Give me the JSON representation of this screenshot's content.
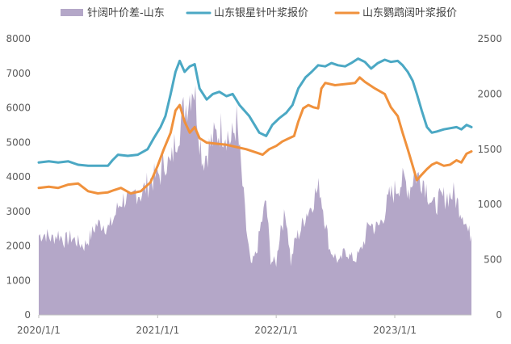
{
  "chart_data": {
    "type": "area+line",
    "title": "",
    "legend": {
      "placement": "top",
      "entries": [
        {
          "label": "针阔叶价差-山东",
          "color": "#b4a7c8",
          "kind": "area",
          "axis": "left"
        },
        {
          "label": "山东银星针叶浆报价",
          "color": "#4ba8c4",
          "kind": "line",
          "axis": "right"
        },
        {
          "label": "山东鹦鹉阔叶浆报价",
          "color": "#f0913c",
          "kind": "line",
          "axis": "right"
        }
      ]
    },
    "x_axis": {
      "type": "date",
      "range": [
        "2020-01-01",
        "2023-08-25"
      ],
      "tick_labels": [
        "2020/1/1",
        "2021/1/1",
        "2022/1/1",
        "2023/1/1"
      ],
      "tick_dates": [
        "2020-01-01",
        "2021-01-01",
        "2022-01-01",
        "2023-01-01"
      ]
    },
    "y_left": {
      "range": [
        0,
        8000
      ],
      "ticks": [
        "0",
        "1000",
        "2000",
        "3000",
        "4000",
        "5000",
        "6000",
        "7000",
        "8000"
      ]
    },
    "y_right": {
      "range": [
        0,
        2500
      ],
      "ticks": [
        "0",
        "500",
        "1000",
        "1500",
        "2000",
        "2500"
      ]
    },
    "grid": false,
    "series": [
      {
        "name": "针阔叶价差-山东",
        "axis": "left",
        "points": [
          [
            "2020-01-01",
            2300
          ],
          [
            "2020-01-20",
            2350
          ],
          [
            "2020-02-10",
            2200
          ],
          [
            "2020-03-01",
            2350
          ],
          [
            "2020-03-20",
            2150
          ],
          [
            "2020-04-10",
            2250
          ],
          [
            "2020-05-01",
            2100
          ],
          [
            "2020-05-20",
            2000
          ],
          [
            "2020-06-10",
            2300
          ],
          [
            "2020-06-25",
            2600
          ],
          [
            "2020-07-15",
            2650
          ],
          [
            "2020-08-05",
            2500
          ],
          [
            "2020-08-25",
            2950
          ],
          [
            "2020-09-10",
            3300
          ],
          [
            "2020-09-25",
            3400
          ],
          [
            "2020-10-10",
            3200
          ],
          [
            "2020-10-25",
            3600
          ],
          [
            "2020-11-10",
            3500
          ],
          [
            "2020-11-25",
            3700
          ],
          [
            "2020-12-10",
            3900
          ],
          [
            "2020-12-25",
            4000
          ],
          [
            "2021-01-10",
            4100
          ],
          [
            "2021-01-25",
            4500
          ],
          [
            "2021-02-10",
            4300
          ],
          [
            "2021-02-25",
            5100
          ],
          [
            "2021-03-10",
            5500
          ],
          [
            "2021-03-25",
            6000
          ],
          [
            "2021-04-10",
            6400
          ],
          [
            "2021-04-20",
            6750
          ],
          [
            "2021-05-01",
            6000
          ],
          [
            "2021-05-10",
            5200
          ],
          [
            "2021-05-20",
            4500
          ],
          [
            "2021-06-01",
            4700
          ],
          [
            "2021-06-15",
            5000
          ],
          [
            "2021-07-01",
            5200
          ],
          [
            "2021-07-15",
            5400
          ],
          [
            "2021-08-01",
            5300
          ],
          [
            "2021-08-15",
            5000
          ],
          [
            "2021-09-01",
            5600
          ],
          [
            "2021-09-15",
            4200
          ],
          [
            "2021-10-01",
            2500
          ],
          [
            "2021-10-15",
            1400
          ],
          [
            "2021-11-01",
            1800
          ],
          [
            "2021-11-15",
            2600
          ],
          [
            "2021-12-01",
            3300
          ],
          [
            "2021-12-15",
            1600
          ],
          [
            "2022-01-01",
            1500
          ],
          [
            "2022-01-15",
            2600
          ],
          [
            "2022-02-01",
            2900
          ],
          [
            "2022-02-15",
            1500
          ],
          [
            "2022-03-01",
            2200
          ],
          [
            "2022-03-15",
            2400
          ],
          [
            "2022-04-01",
            2900
          ],
          [
            "2022-04-15",
            3100
          ],
          [
            "2022-05-01",
            3500
          ],
          [
            "2022-05-15",
            3700
          ],
          [
            "2022-06-01",
            2700
          ],
          [
            "2022-06-15",
            1900
          ],
          [
            "2022-07-01",
            1700
          ],
          [
            "2022-07-15",
            1500
          ],
          [
            "2022-08-01",
            1900
          ],
          [
            "2022-08-15",
            1700
          ],
          [
            "2022-09-01",
            1600
          ],
          [
            "2022-09-15",
            1800
          ],
          [
            "2022-10-01",
            2200
          ],
          [
            "2022-10-15",
            2700
          ],
          [
            "2022-11-01",
            2500
          ],
          [
            "2022-11-15",
            2600
          ],
          [
            "2022-12-01",
            3000
          ],
          [
            "2022-12-15",
            3400
          ],
          [
            "2023-01-01",
            3600
          ],
          [
            "2023-01-15",
            3800
          ],
          [
            "2023-02-01",
            3900
          ],
          [
            "2023-02-15",
            3600
          ],
          [
            "2023-03-01",
            4100
          ],
          [
            "2023-03-15",
            4000
          ],
          [
            "2023-04-01",
            3900
          ],
          [
            "2023-04-15",
            3500
          ],
          [
            "2023-05-01",
            3100
          ],
          [
            "2023-05-15",
            3300
          ],
          [
            "2023-06-01",
            3400
          ],
          [
            "2023-06-15",
            3450
          ],
          [
            "2023-07-01",
            3500
          ],
          [
            "2023-07-15",
            3200
          ],
          [
            "2023-08-01",
            2900
          ],
          [
            "2023-08-15",
            2400
          ],
          [
            "2023-08-25",
            2300
          ]
        ]
      },
      {
        "name": "山东银星针叶浆报价",
        "axis": "right",
        "color": "#4ba8c4",
        "points": [
          [
            "2020-01-01",
            1380
          ],
          [
            "2020-02-01",
            1390
          ],
          [
            "2020-03-01",
            1380
          ],
          [
            "2020-04-01",
            1390
          ],
          [
            "2020-05-01",
            1360
          ],
          [
            "2020-06-01",
            1350
          ],
          [
            "2020-07-01",
            1350
          ],
          [
            "2020-08-01",
            1350
          ],
          [
            "2020-08-15",
            1400
          ],
          [
            "2020-09-01",
            1450
          ],
          [
            "2020-10-01",
            1440
          ],
          [
            "2020-11-01",
            1450
          ],
          [
            "2020-12-01",
            1500
          ],
          [
            "2020-12-20",
            1600
          ],
          [
            "2021-01-10",
            1700
          ],
          [
            "2021-01-25",
            1800
          ],
          [
            "2021-02-10",
            2000
          ],
          [
            "2021-02-25",
            2200
          ],
          [
            "2021-03-10",
            2300
          ],
          [
            "2021-03-25",
            2200
          ],
          [
            "2021-04-10",
            2250
          ],
          [
            "2021-04-25",
            2270
          ],
          [
            "2021-05-10",
            2050
          ],
          [
            "2021-06-01",
            1950
          ],
          [
            "2021-06-20",
            2000
          ],
          [
            "2021-07-10",
            2020
          ],
          [
            "2021-08-01",
            1980
          ],
          [
            "2021-08-20",
            2000
          ],
          [
            "2021-09-10",
            1900
          ],
          [
            "2021-10-10",
            1800
          ],
          [
            "2021-11-10",
            1650
          ],
          [
            "2021-12-01",
            1620
          ],
          [
            "2021-12-20",
            1720
          ],
          [
            "2022-01-10",
            1780
          ],
          [
            "2022-02-01",
            1830
          ],
          [
            "2022-02-20",
            1900
          ],
          [
            "2022-03-10",
            2050
          ],
          [
            "2022-04-01",
            2150
          ],
          [
            "2022-04-20",
            2200
          ],
          [
            "2022-05-10",
            2260
          ],
          [
            "2022-06-01",
            2250
          ],
          [
            "2022-06-20",
            2280
          ],
          [
            "2022-07-10",
            2260
          ],
          [
            "2022-08-01",
            2250
          ],
          [
            "2022-08-20",
            2280
          ],
          [
            "2022-09-10",
            2320
          ],
          [
            "2022-10-01",
            2290
          ],
          [
            "2022-10-20",
            2230
          ],
          [
            "2022-11-10",
            2280
          ],
          [
            "2022-12-01",
            2310
          ],
          [
            "2022-12-20",
            2290
          ],
          [
            "2023-01-10",
            2300
          ],
          [
            "2023-01-25",
            2260
          ],
          [
            "2023-02-10",
            2200
          ],
          [
            "2023-02-25",
            2120
          ],
          [
            "2023-03-10",
            2000
          ],
          [
            "2023-03-25",
            1850
          ],
          [
            "2023-04-10",
            1700
          ],
          [
            "2023-04-25",
            1650
          ],
          [
            "2023-05-10",
            1660
          ],
          [
            "2023-06-01",
            1680
          ],
          [
            "2023-06-20",
            1690
          ],
          [
            "2023-07-10",
            1700
          ],
          [
            "2023-07-25",
            1680
          ],
          [
            "2023-08-10",
            1720
          ],
          [
            "2023-08-25",
            1700
          ]
        ]
      },
      {
        "name": "山东鹦鹉阔叶浆报价",
        "axis": "right",
        "color": "#f0913c",
        "points": [
          [
            "2020-01-01",
            1150
          ],
          [
            "2020-02-01",
            1160
          ],
          [
            "2020-03-01",
            1150
          ],
          [
            "2020-04-01",
            1180
          ],
          [
            "2020-05-01",
            1190
          ],
          [
            "2020-06-01",
            1120
          ],
          [
            "2020-07-01",
            1100
          ],
          [
            "2020-08-01",
            1110
          ],
          [
            "2020-08-20",
            1130
          ],
          [
            "2020-09-10",
            1150
          ],
          [
            "2020-10-10",
            1100
          ],
          [
            "2020-11-10",
            1120
          ],
          [
            "2020-12-10",
            1200
          ],
          [
            "2021-01-01",
            1350
          ],
          [
            "2021-01-20",
            1500
          ],
          [
            "2021-02-10",
            1650
          ],
          [
            "2021-02-25",
            1850
          ],
          [
            "2021-03-10",
            1900
          ],
          [
            "2021-03-25",
            1750
          ],
          [
            "2021-04-10",
            1650
          ],
          [
            "2021-04-25",
            1700
          ],
          [
            "2021-05-10",
            1600
          ],
          [
            "2021-06-01",
            1560
          ],
          [
            "2021-07-01",
            1550
          ],
          [
            "2021-08-01",
            1540
          ],
          [
            "2021-09-01",
            1520
          ],
          [
            "2021-10-01",
            1500
          ],
          [
            "2021-11-01",
            1470
          ],
          [
            "2021-11-20",
            1450
          ],
          [
            "2021-12-10",
            1500
          ],
          [
            "2022-01-01",
            1530
          ],
          [
            "2022-01-20",
            1570
          ],
          [
            "2022-02-10",
            1600
          ],
          [
            "2022-02-25",
            1620
          ],
          [
            "2022-03-10",
            1750
          ],
          [
            "2022-03-25",
            1870
          ],
          [
            "2022-04-10",
            1900
          ],
          [
            "2022-04-25",
            1880
          ],
          [
            "2022-05-10",
            1870
          ],
          [
            "2022-05-20",
            2050
          ],
          [
            "2022-06-01",
            2100
          ],
          [
            "2022-07-01",
            2080
          ],
          [
            "2022-08-01",
            2090
          ],
          [
            "2022-09-01",
            2100
          ],
          [
            "2022-09-15",
            2150
          ],
          [
            "2022-10-01",
            2110
          ],
          [
            "2022-11-01",
            2050
          ],
          [
            "2022-12-01",
            2000
          ],
          [
            "2022-12-20",
            1880
          ],
          [
            "2023-01-10",
            1800
          ],
          [
            "2023-01-25",
            1650
          ],
          [
            "2023-02-10",
            1500
          ],
          [
            "2023-02-25",
            1350
          ],
          [
            "2023-03-10",
            1220
          ],
          [
            "2023-03-25",
            1270
          ],
          [
            "2023-04-10",
            1320
          ],
          [
            "2023-04-25",
            1360
          ],
          [
            "2023-05-10",
            1380
          ],
          [
            "2023-06-01",
            1350
          ],
          [
            "2023-06-20",
            1360
          ],
          [
            "2023-07-10",
            1400
          ],
          [
            "2023-07-25",
            1380
          ],
          [
            "2023-08-10",
            1460
          ],
          [
            "2023-08-25",
            1480
          ]
        ]
      }
    ]
  }
}
